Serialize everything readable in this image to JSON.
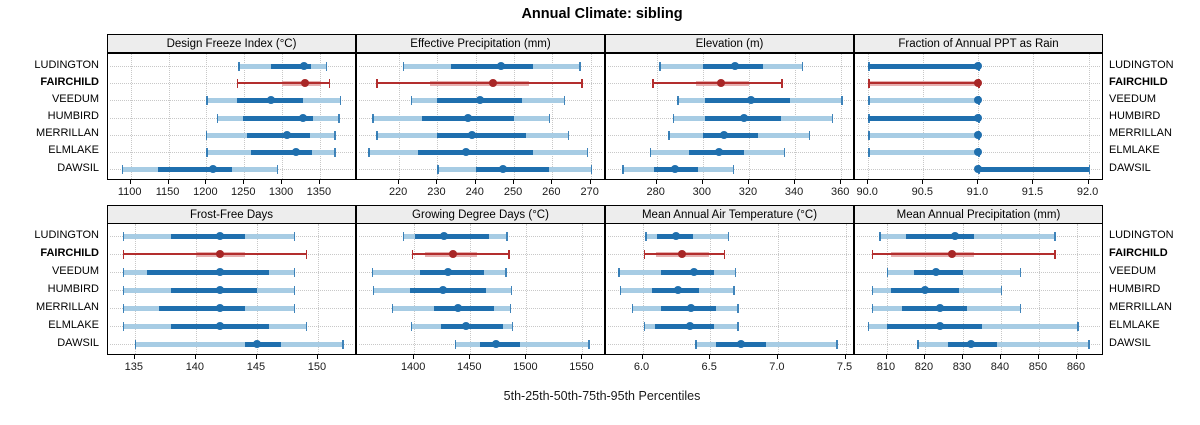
{
  "title": "Annual Climate: sibling",
  "caption": "5th-25th-50th-75th-95th Percentiles",
  "stations": [
    "LUDINGTON",
    "FAIRCHILD",
    "VEEDUM",
    "HUMBIRD",
    "MERRILLAN",
    "ELMLAKE",
    "DAWSIL"
  ],
  "highlight_station": "FAIRCHILD",
  "colors": {
    "blue": "#1f6fae",
    "blue_light": "#a7cce4",
    "red": "#b32e2e",
    "red_light": "#e6b0b0",
    "red_dot": "#a82626",
    "grid": "#c8c8c8",
    "strip_bg": "#ededed",
    "border": "#000000"
  },
  "chart_data": {
    "type": "percentile-dotplot",
    "layout": "2 rows x 4 cols trellis, shared station y-axis, free x scales",
    "percentiles": [
      "5th",
      "25th",
      "50th",
      "75th",
      "95th"
    ],
    "panels": [
      {
        "strip_label": "Design Freeze Index (°C)",
        "ticks": [
          1100,
          1150,
          1200,
          1250,
          1300,
          1350
        ],
        "tick_labels": [
          "1100",
          "1150",
          "1200",
          "1250",
          "1300",
          "1350"
        ],
        "xlim": [
          1070,
          1399
        ],
        "values": [
          [
            1242,
            1285,
            1329,
            1338,
            1358
          ],
          [
            1240,
            1300,
            1330,
            1352,
            1362
          ],
          [
            1200,
            1240,
            1286,
            1328,
            1376
          ],
          [
            1214,
            1249,
            1327,
            1341,
            1374
          ],
          [
            1199,
            1254,
            1306,
            1337,
            1369
          ],
          [
            1200,
            1259,
            1319,
            1339,
            1369
          ],
          [
            1088,
            1136,
            1209,
            1234,
            1293
          ]
        ]
      },
      {
        "strip_label": "Effective Precipitation (mm)",
        "ticks": [
          220,
          230,
          240,
          250,
          260,
          270
        ],
        "tick_labels": [
          "220",
          "230",
          "240",
          "250",
          "260",
          "270"
        ],
        "xlim": [
          209,
          274
        ],
        "values": [
          [
            221,
            233.5,
            246.5,
            255,
            267
          ],
          [
            214,
            228,
            244.5,
            254,
            267.5
          ],
          [
            223,
            230,
            241,
            252,
            263
          ],
          [
            213,
            226,
            238,
            250,
            259
          ],
          [
            214,
            230,
            239,
            253,
            264
          ],
          [
            212,
            225,
            237.5,
            255,
            269
          ],
          [
            230,
            240,
            247,
            259,
            270
          ]
        ]
      },
      {
        "strip_label": "Elevation (m)",
        "ticks": [
          280,
          300,
          320,
          340,
          360
        ],
        "tick_labels": [
          "280",
          "300",
          "320",
          "340",
          "360"
        ],
        "xlim": [
          258,
          366
        ],
        "values": [
          [
            281,
            300,
            314,
            326,
            343
          ],
          [
            278,
            297,
            308,
            320,
            334
          ],
          [
            289,
            301,
            321,
            338,
            360
          ],
          [
            287,
            301,
            318,
            334,
            356
          ],
          [
            285,
            300,
            309,
            324,
            346
          ],
          [
            277,
            294,
            307,
            318,
            335
          ],
          [
            265,
            279,
            288,
            298,
            313
          ]
        ]
      },
      {
        "strip_label": "Fraction of Annual PPT as Rain",
        "ticks": [
          90.0,
          90.5,
          91.0,
          91.5,
          92.0
        ],
        "tick_labels": [
          "90.0",
          "90.5",
          "91.0",
          "91.5",
          "92.0"
        ],
        "xlim": [
          89.88,
          92.14
        ],
        "values": [
          [
            90,
            90,
            91,
            91,
            91
          ],
          [
            90,
            90,
            91,
            91,
            91
          ],
          [
            90,
            91,
            91,
            91,
            91
          ],
          [
            90,
            90,
            91,
            91,
            91
          ],
          [
            90,
            91,
            91,
            91,
            91
          ],
          [
            90,
            91,
            91,
            91,
            91
          ],
          [
            91,
            91,
            91,
            92,
            92
          ]
        ]
      },
      {
        "strip_label": "Frost-Free Days",
        "ticks": [
          135,
          140,
          145,
          150
        ],
        "tick_labels": [
          "135",
          "140",
          "145",
          "150"
        ],
        "xlim": [
          132.8,
          153.2
        ],
        "values": [
          [
            134,
            138,
            142,
            144,
            148
          ],
          [
            134,
            140,
            142,
            144,
            149
          ],
          [
            134,
            136,
            142,
            146,
            148
          ],
          [
            134,
            138,
            142,
            145,
            148
          ],
          [
            134,
            137,
            142,
            144,
            148
          ],
          [
            134,
            138,
            142,
            146,
            149
          ],
          [
            135,
            144,
            145,
            147,
            152
          ]
        ]
      },
      {
        "strip_label": "Growing Degree Days (°C)",
        "ticks": [
          1400,
          1450,
          1500,
          1550
        ],
        "tick_labels": [
          "1400",
          "1450",
          "1500",
          "1550"
        ],
        "xlim": [
          1349,
          1571
        ],
        "values": [
          [
            1390,
            1401,
            1427,
            1467,
            1482
          ],
          [
            1398,
            1410,
            1435,
            1456,
            1484
          ],
          [
            1362,
            1405,
            1430,
            1462,
            1481
          ],
          [
            1363,
            1396,
            1426,
            1464,
            1486
          ],
          [
            1380,
            1418,
            1439,
            1471,
            1485
          ],
          [
            1397,
            1424,
            1446,
            1479,
            1487
          ],
          [
            1436,
            1459,
            1473,
            1494,
            1555
          ]
        ]
      },
      {
        "strip_label": "Mean Annual Air Temperature (°C)",
        "ticks": [
          6.0,
          6.5,
          7.0,
          7.5
        ],
        "tick_labels": [
          "6.0",
          "6.5",
          "7.0",
          "7.5"
        ],
        "xlim": [
          5.73,
          7.57
        ],
        "values": [
          [
            6.02,
            6.11,
            6.25,
            6.37,
            6.63
          ],
          [
            6.01,
            6.1,
            6.29,
            6.49,
            6.6
          ],
          [
            5.82,
            6.14,
            6.38,
            6.53,
            6.68
          ],
          [
            5.83,
            6.07,
            6.26,
            6.42,
            6.67
          ],
          [
            5.92,
            6.14,
            6.36,
            6.54,
            6.7
          ],
          [
            6.01,
            6.09,
            6.35,
            6.53,
            6.7
          ],
          [
            6.39,
            6.54,
            6.73,
            6.91,
            7.43
          ]
        ]
      },
      {
        "strip_label": "Mean Annual Precipitation (mm)",
        "ticks": [
          810,
          820,
          830,
          840,
          850,
          860
        ],
        "tick_labels": [
          "810",
          "820",
          "830",
          "840",
          "850",
          "860"
        ],
        "xlim": [
          801.6,
          867.1
        ],
        "values": [
          [
            808,
            815,
            828,
            833,
            854
          ],
          [
            806,
            811,
            827,
            833,
            854
          ],
          [
            810,
            817,
            823,
            830,
            845
          ],
          [
            806,
            811,
            820,
            829,
            840
          ],
          [
            806,
            814,
            824,
            831,
            845
          ],
          [
            805,
            810,
            824,
            835,
            860
          ],
          [
            818,
            826,
            832,
            839,
            863
          ]
        ]
      }
    ]
  }
}
